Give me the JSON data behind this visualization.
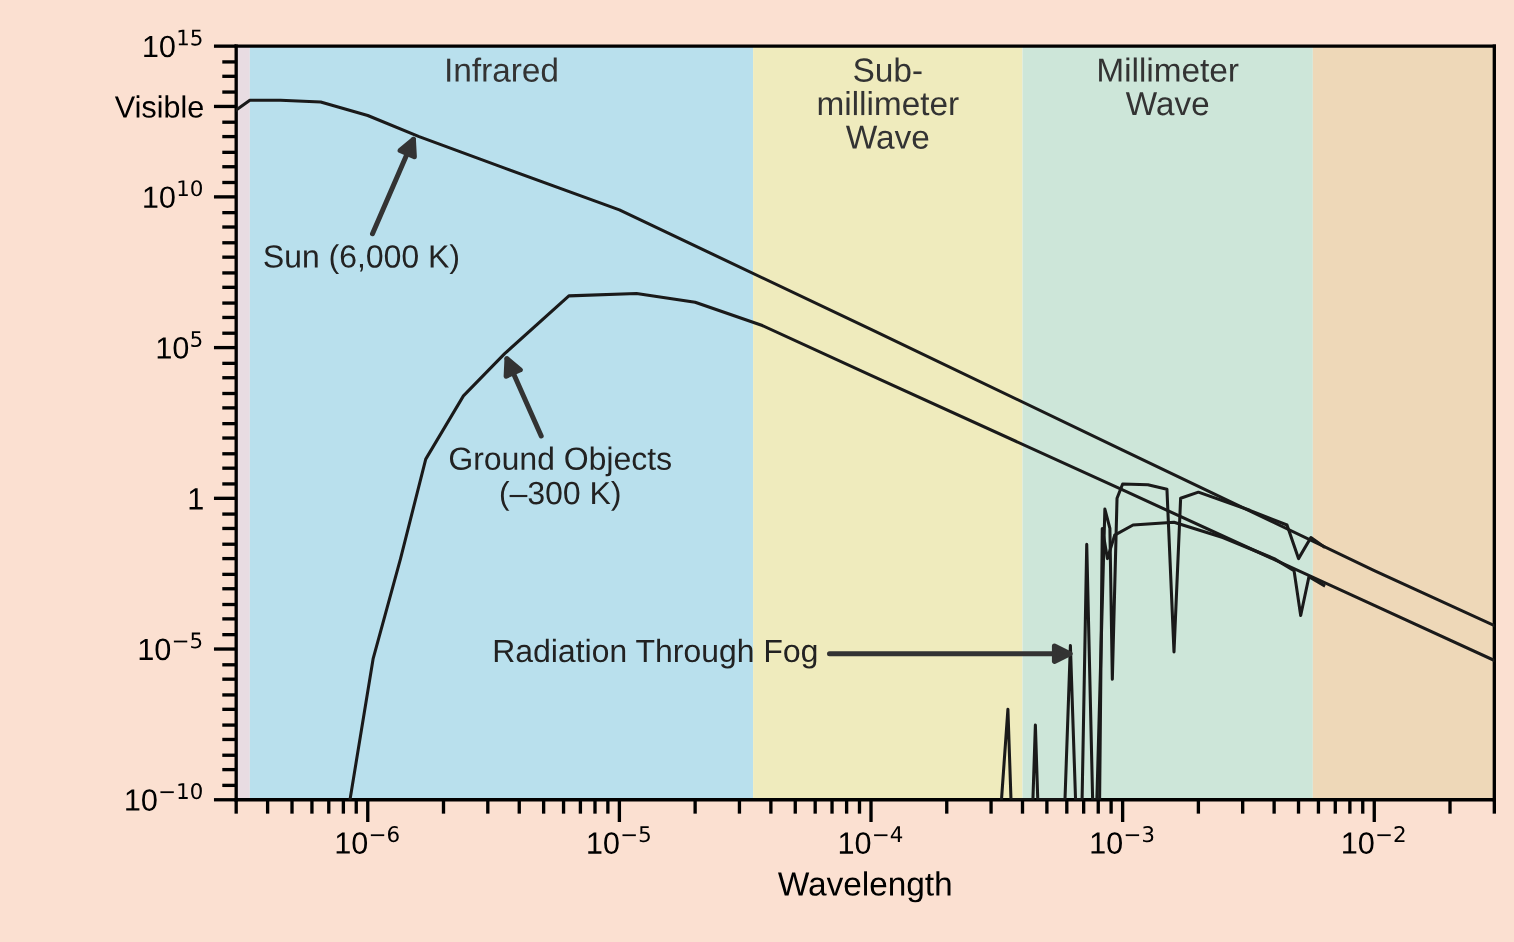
{
  "chart_data": {
    "type": "line",
    "xlabel": "Wavelength",
    "log": "xy",
    "xlim": [
      3e-07,
      0.03
    ],
    "ylim": [
      1e-10,
      1000000000000000.0
    ],
    "xticks": [
      {
        "value": 1e-06,
        "label": "10$^{−6}$"
      },
      {
        "value": 1e-05,
        "label": "10$^{−5}$"
      },
      {
        "value": 0.0001,
        "label": "10$^{−4}$"
      },
      {
        "value": 0.001,
        "label": "10$^{−3}$"
      },
      {
        "value": 0.01,
        "label": "10$^{−2}$"
      }
    ],
    "yticks": [
      {
        "value": 1000000000000000.0,
        "label": "10$^{15}$"
      },
      {
        "value": 10000000000000.0,
        "label": "Visible"
      },
      {
        "value": 10000000000.0,
        "label": "10$^{10}$"
      },
      {
        "value": 100000.0,
        "label": "10$^{5}$"
      },
      1,
      {
        "value": 1e-05,
        "label": "10$^{−5}$"
      },
      {
        "value": 1e-10,
        "label": "10$^{−10}$"
      }
    ],
    "grid": false,
    "legend": false,
    "marker": "none",
    "line_style": "solid",
    "bands": [
      {
        "axis": "x",
        "from": 3e-07,
        "to": 3.4e-07,
        "color": "#e8dce2"
      },
      {
        "axis": "x",
        "from": 3.4e-07,
        "to": 3.4e-05,
        "label": "Infrared",
        "color": "#b9e0ed"
      },
      {
        "axis": "x",
        "from": 3.4e-05,
        "to": 0.0004,
        "label": "Sub-\nmillimeter\nWave",
        "color": "#efebbd"
      },
      {
        "axis": "x",
        "from": 0.0004,
        "to": 0.0057,
        "label": "Millimeter\nWave",
        "color": "#cde6d9"
      },
      {
        "axis": "x",
        "from": 0.0057,
        "to": 0.03,
        "color": "#eed8b8"
      }
    ],
    "series": [
      {
        "color": "#1a1a1a",
        "x": [
          3e-07,
          3.4e-07,
          4.5e-07,
          6.5e-07,
          1e-06,
          1.6e-06,
          3.5e-06,
          1e-05,
          0.0001,
          0.001,
          0.01,
          0.03
        ],
        "values": [
          7600000000000.0,
          16000000000000.0,
          16000000000000.0,
          14000000000000.0,
          5000000000000.0,
          1000000000000.0,
          90000000000.0,
          3700000000.0,
          400000.0,
          40,
          0.004,
          6e-05
        ]
      },
      {
        "color": "#1a1a1a",
        "x": [
          8.5e-07,
          1.05e-06,
          1.35e-06,
          1.7e-06,
          2.4e-06,
          3.5e-06,
          6.3e-06,
          1.17e-05,
          2e-05,
          3.7e-05,
          0.0001,
          0.001,
          0.01,
          0.03
        ],
        "values": [
          1e-10,
          4.7e-06,
          0.01,
          20,
          2500.0,
          63000.0,
          5200000.0,
          6200000.0,
          3200000.0,
          540000.0,
          12000.0,
          1.9,
          0.00028,
          4.2e-06
        ]
      },
      {
        "color": "#1a1a1a",
        "x": [
          0.00033,
          0.00035,
          0.00036,
          0.00044,
          0.00045,
          0.00046,
          0.00059,
          0.00062,
          0.00065,
          0.00069,
          0.00072,
          0.00076,
          0.00079,
          0.00085,
          0.00089,
          0.00091,
          0.00095,
          0.001,
          0.00126,
          0.0015,
          0.0016,
          0.0017,
          0.002,
          0.0032,
          0.0045,
          0.005,
          0.0056,
          0.0063
        ],
        "values": [
          1e-10,
          1e-07,
          1e-10,
          1e-10,
          3e-08,
          1e-10,
          1e-10,
          1.3e-05,
          1e-10,
          1e-10,
          0.03,
          1e-10,
          1e-10,
          0.44,
          0.1,
          1e-06,
          1,
          3,
          2.8,
          2,
          8e-06,
          1,
          1.6,
          0.4,
          0.13,
          0.01,
          0.05,
          0.025
        ]
      },
      {
        "color": "#1a1a1a",
        "x": [
          0.00081,
          0.00083,
          0.00087,
          0.00093,
          0.0011,
          0.0016,
          0.0025,
          0.004,
          0.0048,
          0.0051,
          0.0055,
          0.0063
        ],
        "values": [
          1e-10,
          0.1,
          0.01,
          0.06,
          0.13,
          0.16,
          0.05,
          0.01,
          0.004,
          0.00013,
          0.0025,
          0.0013
        ]
      }
    ],
    "annotations": [
      {
        "text": "Sun (6,000 K)",
        "x": 1.55e-06,
        "y": 1200000000000.0
      },
      {
        "text": "Ground Objects\n(–300 K)",
        "x": 3.5e-06,
        "y": 63000.0
      },
      {
        "text": "Radiation Through Fog",
        "x": 0.00065,
        "y": 7e-06
      }
    ]
  }
}
